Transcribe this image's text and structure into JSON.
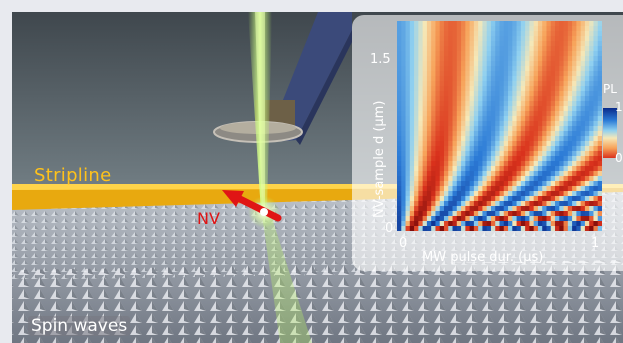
{
  "scene": {
    "stripline_label": "Stripline",
    "nv_label": "NV",
    "spin_waves_label": "Spin waves"
  },
  "inset": {
    "y_label": "NV-sample d (μm)",
    "x_label": "MW pulse dur. (μs)",
    "y_ticks": [
      "1.5",
      "0"
    ],
    "x_ticks": [
      "0",
      "1"
    ],
    "colorbar": {
      "title": "PL",
      "max": "1",
      "min": "0"
    },
    "colormap": [
      "#0a2a8a",
      "#2c7bd6",
      "#8fd0f0",
      "#f5e8b8",
      "#f7a35a",
      "#d9311c",
      "#7a0a0a"
    ]
  },
  "colors": {
    "stripline": "#ffc21a",
    "nv_arrow": "#e01515",
    "laser": "#b9f26a"
  }
}
